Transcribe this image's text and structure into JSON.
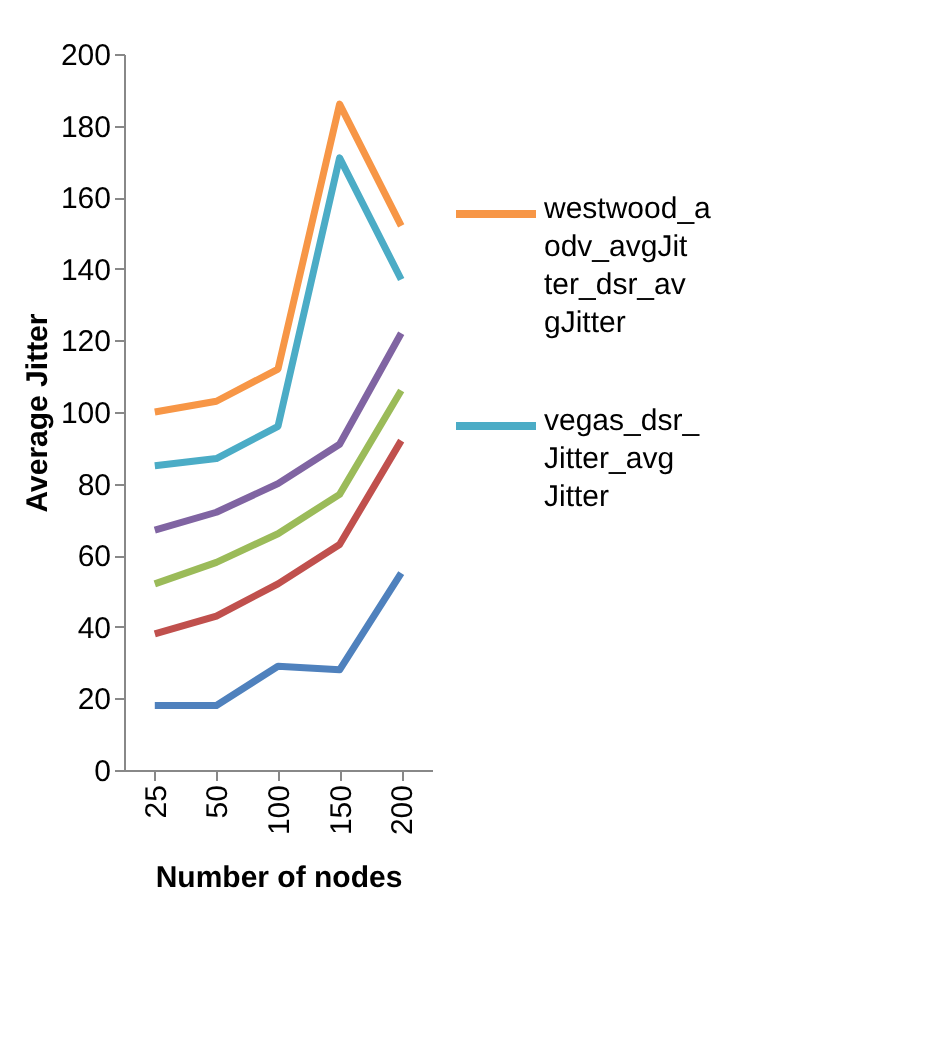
{
  "chart_data": {
    "type": "line",
    "xlabel": "Number of nodes",
    "ylabel": "Average Jitter",
    "categories": [
      "25",
      "50",
      "100",
      "150",
      "200"
    ],
    "series": [
      {
        "name": "westwood_aodv_avgJitter_dsr_avgJitter",
        "color": "#f79646",
        "values": [
          100,
          103,
          112,
          186,
          152
        ]
      },
      {
        "name": "vegas_dsr_Jitter_avgJitter",
        "color": "#4bacc6",
        "values": [
          85,
          87,
          96,
          171,
          137
        ]
      },
      {
        "color": "#8064a2",
        "values": [
          67,
          72,
          80,
          91,
          122
        ]
      },
      {
        "color": "#9bbb59",
        "values": [
          52,
          58,
          66,
          77,
          106
        ]
      },
      {
        "color": "#c0504d",
        "values": [
          38,
          43,
          52,
          63,
          92
        ]
      },
      {
        "color": "#4f81bd",
        "values": [
          18,
          18,
          29,
          28,
          55
        ]
      }
    ],
    "ylim": [
      0,
      200
    ],
    "yticks": [
      0,
      20,
      40,
      60,
      80,
      100,
      120,
      140,
      160,
      180,
      200
    ],
    "grid": false,
    "legend": "right",
    "marker": "none",
    "line_style": "solid"
  }
}
